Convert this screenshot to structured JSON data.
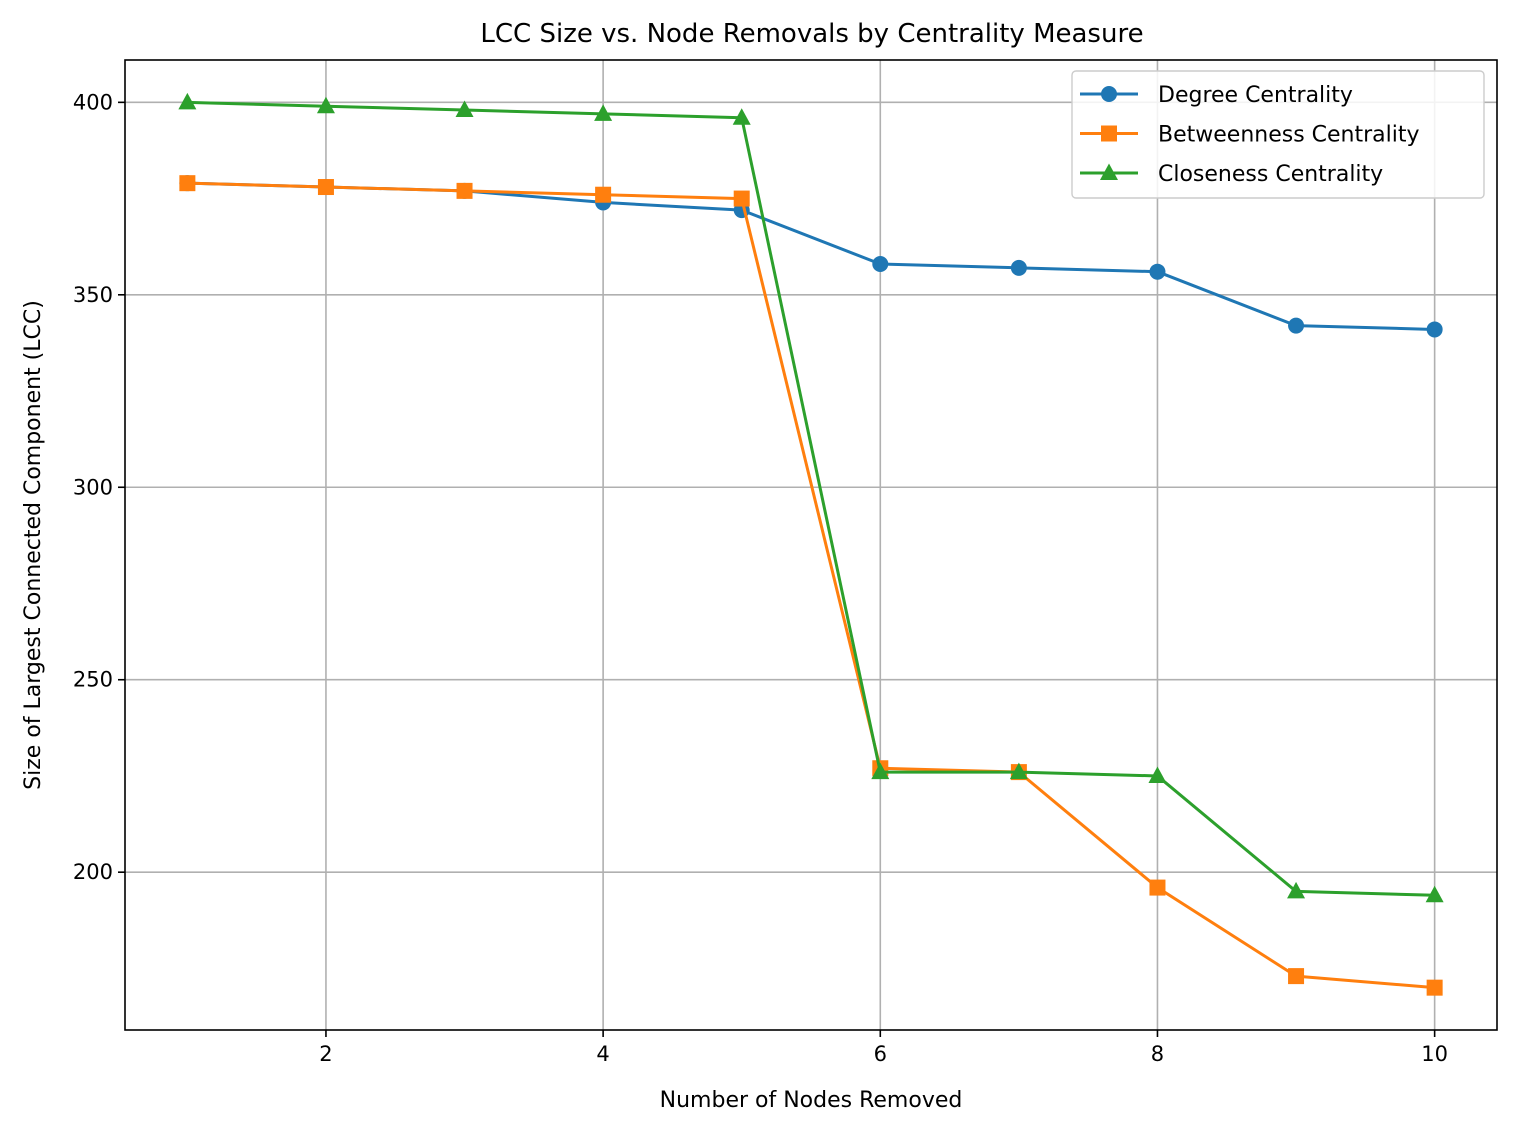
{
  "chart_data": {
    "type": "line",
    "title": "LCC Size vs. Node Removals by Centrality Measure",
    "xlabel": "Number of Nodes Removed",
    "ylabel": "Size of Largest Connected Component (LCC)",
    "xlim": [
      0.55,
      10.45
    ],
    "ylim": [
      159,
      411
    ],
    "xticks": [
      2,
      4,
      6,
      8,
      10
    ],
    "xtick_labels": [
      "2",
      "4",
      "6",
      "8",
      "10"
    ],
    "yticks": [
      200,
      250,
      300,
      350,
      400
    ],
    "ytick_labels": [
      "200",
      "250",
      "300",
      "350",
      "400"
    ],
    "grid": true,
    "legend_position": "upper-right",
    "x": [
      1,
      2,
      3,
      4,
      5,
      6,
      7,
      8,
      9,
      10
    ],
    "series": [
      {
        "name": "Degree Centrality",
        "color": "#1f77b4",
        "marker": "circle",
        "values": [
          379,
          378,
          377,
          374,
          372,
          358,
          357,
          356,
          342,
          341
        ]
      },
      {
        "name": "Betweenness Centrality",
        "color": "#ff7f0e",
        "marker": "square",
        "values": [
          379,
          378,
          377,
          376,
          375,
          227,
          226,
          196,
          173,
          170
        ]
      },
      {
        "name": "Closeness Centrality",
        "color": "#2ca02c",
        "marker": "triangle",
        "values": [
          400,
          399,
          398,
          397,
          396,
          226,
          226,
          225,
          195,
          194
        ]
      }
    ]
  }
}
